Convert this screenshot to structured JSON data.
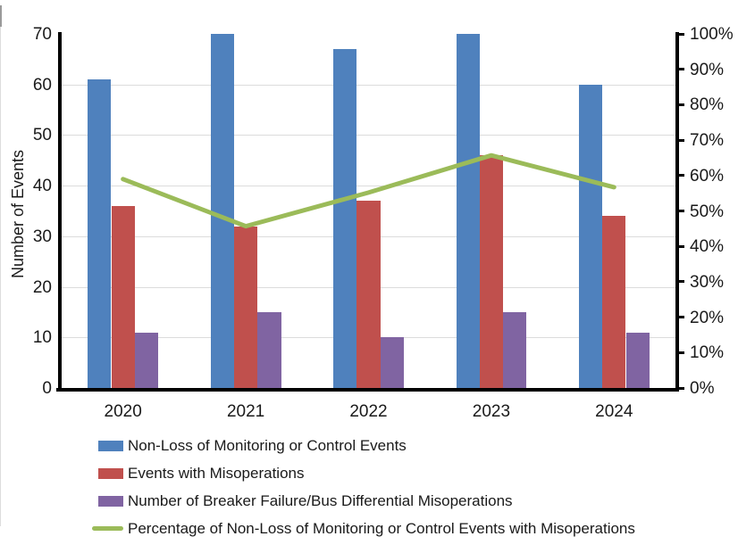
{
  "chart_data": {
    "type": "combo-bar-line",
    "title": "",
    "categories": [
      "2020",
      "2021",
      "2022",
      "2023",
      "2024"
    ],
    "series": [
      {
        "name": "Non-Loss of Monitoring or Control Events",
        "type": "bar",
        "axis": "left",
        "color": "#4F81BD",
        "values": [
          61,
          70,
          67,
          70,
          60
        ]
      },
      {
        "name": "Events with Misoperations",
        "type": "bar",
        "axis": "left",
        "color": "#C0504D",
        "values": [
          36,
          32,
          37,
          46,
          34
        ]
      },
      {
        "name": "Number of Breaker Failure/Bus Differential Misoperations",
        "type": "bar",
        "axis": "left",
        "color": "#8064A2",
        "values": [
          11,
          15,
          10,
          15,
          11
        ]
      },
      {
        "name": "Percentage of Non-Loss of Monitoring or Control Events with Misoperations",
        "type": "line",
        "axis": "right",
        "color": "#9BBB59",
        "values": [
          59.0,
          45.7,
          55.2,
          65.7,
          56.7
        ]
      }
    ],
    "left_axis": {
      "title": "Number of Events",
      "min": 0,
      "max": 70,
      "step": 10,
      "tick_labels": [
        "0",
        "10",
        "20",
        "30",
        "40",
        "50",
        "60",
        "70"
      ]
    },
    "right_axis": {
      "title": "",
      "min": 0,
      "max": 100,
      "step": 10,
      "tick_labels": [
        "0%",
        "10%",
        "20%",
        "30%",
        "40%",
        "50%",
        "60%",
        "70%",
        "80%",
        "90%",
        "100%"
      ]
    },
    "grid": "horizontal-light",
    "legend_position": "bottom-left",
    "colors": {
      "background": "#FFFFFF",
      "axis": "#000000",
      "gridline": "#DCDCDC",
      "text": "#1A1A1A"
    }
  }
}
